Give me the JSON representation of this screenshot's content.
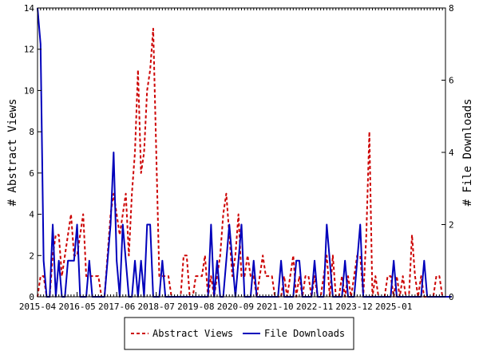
{
  "chart_data": {
    "type": "line",
    "ylabel_left": "# Abstract Views",
    "ylabel_right": "# File Downloads",
    "ylim_left": [
      0,
      14
    ],
    "ylim_right": [
      0,
      8
    ],
    "yticks_left": [
      "0",
      "2",
      "4",
      "6",
      "8",
      "10",
      "12",
      "14"
    ],
    "yticks_right": [
      "0",
      "2",
      "4",
      "6",
      "8"
    ],
    "xticks": [
      "2015-04",
      "2016-05",
      "2017-06",
      "2018-07",
      "2019-08",
      "2020-09",
      "2021-10",
      "2022-11",
      "2023-12",
      "2025-01"
    ],
    "grid": false,
    "legend_position": "bottom",
    "series": [
      {
        "name": "Abstract Views",
        "axis": "left",
        "color": "#cc0000",
        "style": "dashed",
        "values": [
          0,
          1,
          1,
          0,
          0,
          2,
          3,
          3,
          1,
          2,
          3,
          4,
          2,
          2,
          3,
          4,
          1,
          1,
          1,
          1,
          1,
          0,
          0,
          2,
          4,
          5,
          4,
          3,
          4,
          5,
          2,
          5,
          7,
          11,
          6,
          7,
          10,
          11,
          13,
          7,
          1,
          1,
          1,
          1,
          0,
          0,
          0,
          0,
          2,
          2,
          0,
          0,
          1,
          1,
          1,
          2,
          0,
          1,
          0,
          1,
          2,
          4,
          5,
          3,
          1,
          2,
          4,
          1,
          1,
          2,
          1,
          1,
          0,
          1,
          2,
          1,
          1,
          1,
          0,
          0,
          0,
          1,
          0,
          1,
          2,
          0,
          1,
          0,
          1,
          1,
          0,
          1,
          0,
          0,
          1,
          2,
          0,
          2,
          0,
          0,
          1,
          0,
          1,
          0,
          1,
          2,
          2,
          0,
          3,
          8,
          0,
          1,
          0,
          0,
          0,
          1,
          1,
          0,
          1,
          0,
          1,
          0,
          0,
          3,
          1,
          0,
          1,
          0,
          0,
          0,
          0,
          1,
          1,
          0,
          0
        ]
      },
      {
        "name": "File Downloads",
        "axis": "right",
        "color": "#0000bb",
        "style": "solid",
        "values": [
          8,
          7,
          1,
          0,
          0,
          2,
          0,
          1,
          0,
          0,
          1,
          1,
          1,
          2,
          0,
          0,
          0,
          1,
          0,
          0,
          0,
          0,
          0,
          1,
          2,
          4,
          1,
          0,
          2,
          1,
          0,
          0,
          1,
          0,
          1,
          0,
          2,
          2,
          0,
          0,
          0,
          1,
          0,
          0,
          0,
          0,
          0,
          0,
          0,
          0,
          0,
          0,
          0,
          0,
          0,
          0,
          0,
          2,
          0,
          1,
          0,
          0,
          1,
          2,
          1,
          0,
          1,
          2,
          0,
          0,
          0,
          1,
          0,
          0,
          0,
          0,
          0,
          0,
          0,
          0,
          1,
          0,
          0,
          0,
          0,
          1,
          1,
          0,
          0,
          0,
          0,
          1,
          0,
          0,
          0,
          2,
          1,
          0,
          0,
          0,
          0,
          1,
          0,
          0,
          0,
          1,
          2,
          0,
          0,
          0,
          0,
          0,
          0,
          0,
          0,
          0,
          0,
          1,
          0,
          0,
          0,
          0,
          0,
          0,
          0,
          0,
          0,
          1,
          0,
          0,
          0,
          0,
          0,
          0,
          0,
          0,
          0
        ]
      }
    ]
  }
}
